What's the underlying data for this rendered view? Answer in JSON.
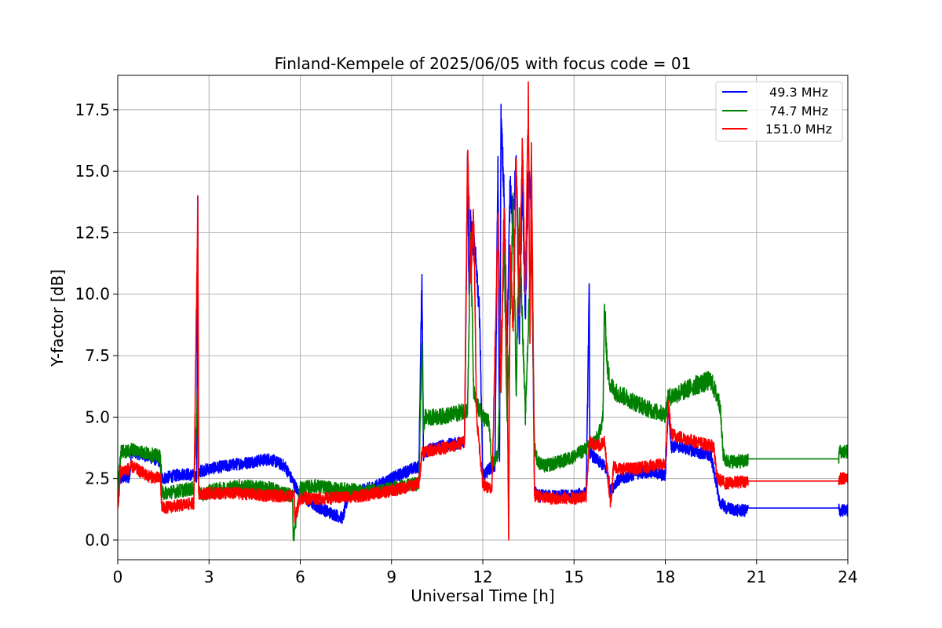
{
  "chart_data": {
    "type": "line",
    "title": "Finland-Kempele of 2025/06/05 with focus code = 01",
    "xlabel": "Universal Time [h]",
    "ylabel": "Y-factor [dB]",
    "xlim": [
      0,
      24
    ],
    "ylim": [
      -0.8,
      18.9
    ],
    "xticks": [
      0,
      3,
      6,
      9,
      12,
      15,
      18,
      21,
      24
    ],
    "xtick_labels": [
      "0",
      "3",
      "6",
      "9",
      "12",
      "15",
      "18",
      "21",
      "24"
    ],
    "yticks": [
      0.0,
      2.5,
      5.0,
      7.5,
      10.0,
      12.5,
      15.0,
      17.5
    ],
    "ytick_labels": [
      "0.0",
      "2.5",
      "5.0",
      "7.5",
      "10.0",
      "12.5",
      "15.0",
      "17.5"
    ],
    "grid": true,
    "legend_position": "upper-right",
    "series": [
      {
        "name": " 49.3 MHz",
        "color": "#0000ff",
        "noise": 0.25,
        "x": [
          0,
          0.1,
          0.4,
          0.45,
          1.0,
          1.4,
          1.45,
          2.2,
          2.6,
          2.63,
          2.66,
          2.7,
          3.0,
          3.5,
          4.0,
          4.5,
          5.0,
          5.5,
          5.75,
          6.0,
          6.5,
          7.0,
          7.4,
          7.6,
          8.0,
          8.5,
          9.0,
          9.5,
          9.9,
          10.0,
          10.05,
          10.1,
          10.5,
          11.0,
          11.4,
          11.5,
          11.55,
          11.6,
          11.7,
          11.8,
          11.9,
          12.0,
          12.1,
          12.2,
          12.4,
          12.5,
          12.55,
          12.6,
          12.7,
          12.8,
          12.9,
          13.0,
          13.1,
          13.2,
          13.3,
          13.4,
          13.5,
          13.6,
          13.7,
          13.8,
          14.0,
          14.5,
          15.0,
          15.3,
          15.4,
          15.5,
          15.52,
          15.55,
          15.7,
          16.0,
          16.1,
          16.2,
          16.4,
          16.8,
          17.0,
          17.5,
          18.0,
          18.1,
          18.2,
          18.5,
          19.0,
          19.5,
          19.7,
          19.75,
          20.0,
          20.4,
          20.7,
          20.72,
          21.0,
          23.7,
          23.72,
          24.0
        ],
        "y": [
          2.4,
          2.5,
          2.6,
          3.6,
          3.4,
          3.2,
          2.5,
          2.7,
          2.6,
          14.0,
          2.6,
          2.8,
          2.9,
          3.0,
          3.1,
          3.2,
          3.3,
          3.0,
          2.4,
          1.8,
          1.4,
          1.1,
          0.9,
          1.9,
          2.0,
          2.2,
          2.5,
          2.8,
          3.0,
          10.8,
          3.4,
          3.6,
          3.8,
          3.9,
          4.0,
          15.5,
          10.0,
          12.8,
          12.0,
          11.0,
          9.0,
          2.6,
          2.7,
          2.9,
          3.0,
          15.6,
          3.2,
          17.0,
          14.0,
          8.0,
          14.5,
          13.0,
          15.3,
          8.0,
          14.8,
          9.0,
          15.0,
          13.5,
          2.0,
          1.8,
          1.8,
          1.8,
          1.8,
          1.9,
          1.9,
          10.2,
          3.5,
          3.5,
          3.3,
          3.0,
          2.7,
          2.0,
          2.4,
          2.6,
          2.7,
          2.8,
          2.6,
          5.5,
          3.8,
          3.8,
          3.6,
          3.4,
          2.2,
          1.6,
          1.3,
          1.2,
          1.2,
          1.3,
          1.3,
          1.3,
          1.2,
          1.2
        ]
      },
      {
        "name": " 74.7 MHz",
        "color": "#008000",
        "noise": 0.28,
        "x": [
          0,
          0.1,
          0.4,
          0.45,
          1.0,
          1.4,
          1.45,
          2.0,
          2.5,
          2.63,
          2.66,
          2.8,
          3.0,
          4.0,
          5.0,
          5.75,
          5.77,
          6.0,
          6.5,
          7.0,
          8.0,
          8.5,
          9.0,
          9.5,
          9.9,
          10.0,
          10.05,
          10.1,
          10.5,
          11.0,
          11.5,
          11.6,
          11.7,
          11.8,
          12.0,
          12.2,
          12.3,
          12.5,
          12.7,
          12.8,
          13.0,
          13.1,
          13.2,
          13.4,
          13.6,
          13.7,
          13.8,
          14.0,
          14.3,
          14.6,
          15.0,
          15.5,
          15.8,
          15.95,
          16.0,
          16.1,
          16.2,
          16.4,
          17.0,
          17.5,
          18.0,
          18.1,
          18.5,
          19.0,
          19.5,
          19.8,
          19.9,
          20.0,
          20.7,
          20.72,
          23.7,
          23.72,
          24.0
        ],
        "y": [
          2.0,
          3.6,
          3.6,
          3.7,
          3.5,
          3.4,
          1.9,
          2.0,
          2.1,
          6.0,
          2.0,
          1.8,
          2.0,
          2.2,
          2.1,
          1.8,
          0.0,
          2.1,
          2.2,
          2.1,
          2.0,
          2.0,
          2.1,
          2.2,
          2.3,
          8.0,
          4.6,
          5.0,
          5.0,
          5.1,
          5.3,
          12.5,
          6.0,
          5.5,
          5.0,
          4.8,
          3.0,
          3.5,
          12.0,
          5.0,
          13.5,
          6.0,
          13.0,
          5.0,
          12.5,
          3.8,
          3.2,
          3.0,
          3.1,
          3.2,
          3.4,
          3.8,
          4.2,
          5.0,
          9.5,
          7.0,
          6.3,
          6.0,
          5.6,
          5.3,
          5.1,
          5.8,
          6.0,
          6.3,
          6.5,
          5.5,
          3.5,
          3.2,
          3.2,
          3.3,
          3.3,
          3.6,
          3.6
        ]
      },
      {
        "name": " 151.0 MHz",
        "color": "#ff0000",
        "noise": 0.25,
        "x": [
          0,
          0.1,
          0.4,
          0.45,
          1.0,
          1.4,
          1.45,
          2.0,
          2.5,
          2.63,
          2.66,
          2.8,
          3.0,
          4.0,
          5.0,
          5.8,
          5.82,
          6.0,
          7.0,
          8.0,
          9.0,
          9.9,
          10.0,
          10.5,
          11.0,
          11.4,
          11.5,
          11.6,
          11.7,
          11.8,
          12.0,
          12.3,
          12.5,
          12.6,
          12.7,
          12.8,
          12.85,
          12.9,
          13.0,
          13.1,
          13.2,
          13.3,
          13.4,
          13.5,
          13.55,
          13.6,
          13.7,
          13.8,
          14.0,
          15.0,
          15.4,
          15.5,
          15.8,
          16.0,
          16.2,
          16.3,
          16.5,
          17.0,
          17.5,
          18.0,
          18.1,
          18.2,
          19.0,
          19.6,
          19.7,
          20.0,
          20.7,
          20.72,
          23.7,
          23.72,
          24.0
        ],
        "y": [
          1.3,
          2.8,
          2.9,
          3.0,
          2.6,
          2.5,
          1.3,
          1.4,
          1.5,
          13.5,
          1.9,
          1.9,
          1.9,
          1.9,
          1.8,
          1.8,
          0.9,
          1.7,
          1.7,
          1.8,
          2.0,
          2.3,
          3.6,
          3.7,
          3.8,
          4.0,
          15.8,
          11.0,
          13.0,
          5.0,
          2.3,
          2.0,
          13.0,
          6.0,
          13.5,
          8.0,
          0.0,
          12.0,
          8.5,
          15.5,
          9.5,
          16.2,
          10.0,
          18.0,
          8.0,
          16.0,
          1.8,
          1.8,
          1.7,
          1.7,
          1.8,
          4.0,
          3.8,
          4.0,
          1.5,
          3.0,
          2.9,
          2.9,
          3.0,
          3.1,
          5.5,
          4.3,
          4.0,
          3.8,
          2.5,
          2.3,
          2.4,
          2.4,
          2.4,
          2.5,
          2.5
        ]
      }
    ]
  }
}
